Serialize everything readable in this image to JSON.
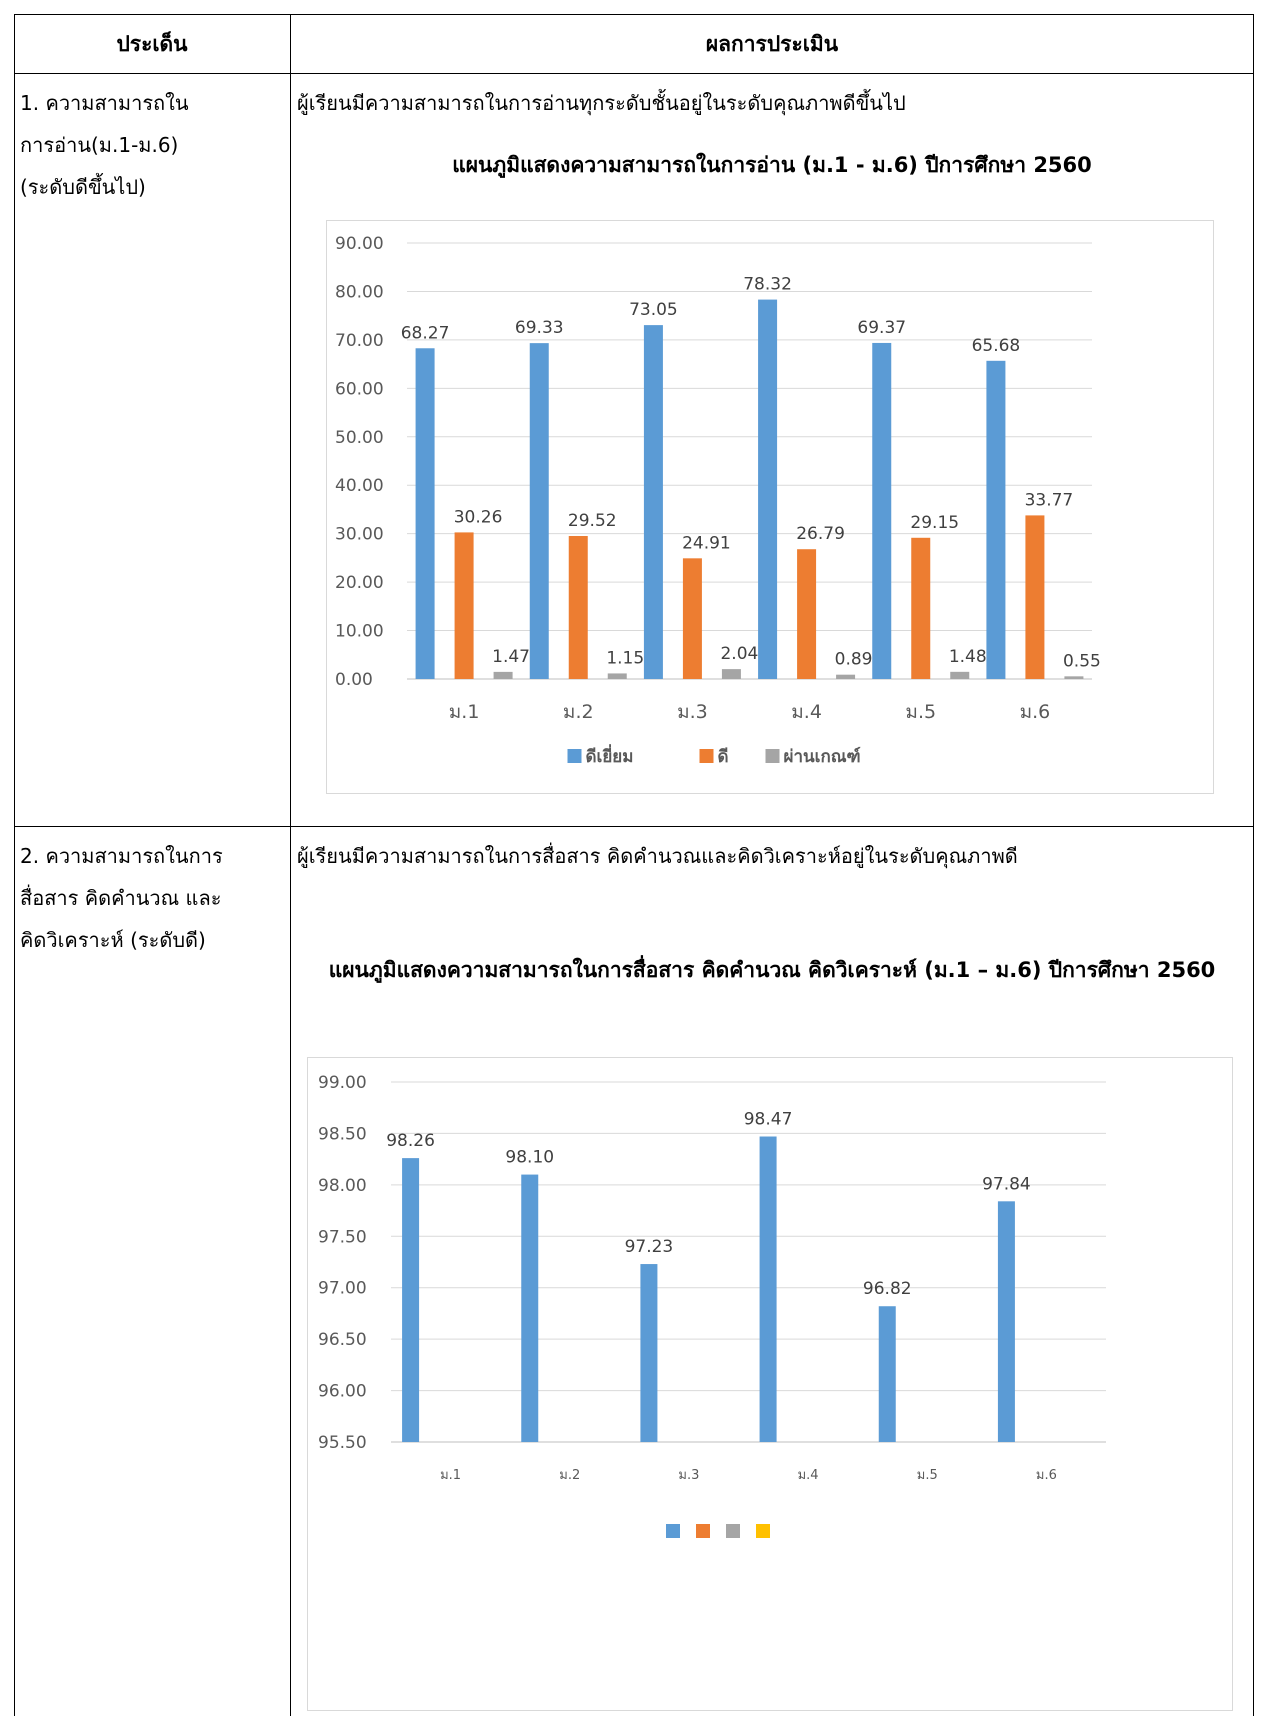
{
  "table": {
    "header": {
      "topic": "ประเด็น",
      "result": "ผลการประเมิน"
    },
    "rows": [
      {
        "topic": "1. ความสามารถใน\nการอ่าน(ม.1-ม.6)\n(ระดับดีขึ้นไป)",
        "result": "ผู้เรียนมีความสามารถในการอ่านทุกระดับชั้นอยู่ในระดับคุณภาพดีขึ้นไป",
        "chart_title": "แผนภูมิแสดงความสามารถในการอ่าน (ม.1 - ม.6) ปีการศึกษา 2560"
      },
      {
        "topic": "2. ความสามารถในการ\nสื่อสาร คิดคำนวณ และ\nคิดวิเคราะห์ (ระดับดี)",
        "result": "ผู้เรียนมีความสามารถในการสื่อสาร คิดคำนวณและคิดวิเคราะห์อยู่ในระดับคุณภาพดี",
        "chart_title": "แผนภูมิแสดงความสามารถในการสื่อสาร คิดคำนวณ คิดวิเคราะห์ (ม.1 – ม.6) ปีการศึกษา 2560"
      }
    ]
  },
  "chart_data": [
    {
      "type": "bar",
      "categories": [
        "ม.1",
        "ม.2",
        "ม.3",
        "ม.4",
        "ม.5",
        "ม.6"
      ],
      "series": [
        {
          "name": "ดีเยี่ยม",
          "color": "#5b9bd5",
          "values": [
            68.27,
            69.33,
            73.05,
            78.32,
            69.37,
            65.68
          ]
        },
        {
          "name": "ดี",
          "color": "#ed7d31",
          "values": [
            30.26,
            29.52,
            24.91,
            26.79,
            29.15,
            33.77
          ]
        },
        {
          "name": "ผ่านเกณฑ์",
          "color": "#a5a5a5",
          "values": [
            1.47,
            1.15,
            2.04,
            0.89,
            1.48,
            0.55
          ]
        }
      ],
      "ylim": [
        0,
        90
      ],
      "ytick_step": 10,
      "ytick_decimals": 2,
      "grid": true,
      "legend": "bottom"
    },
    {
      "type": "bar",
      "categories": [
        "ม.1",
        "ม.2",
        "ม.3",
        "ม.4",
        "ม.5",
        "ม.6"
      ],
      "series": [
        {
          "color": "#5b9bd5",
          "values": [
            98.26,
            98.1,
            97.23,
            98.47,
            96.82,
            97.84
          ]
        }
      ],
      "legend_swatches": [
        "#5b9bd5",
        "#ed7d31",
        "#a5a5a5",
        "#ffc000"
      ],
      "ylim": [
        95.5,
        99.0
      ],
      "ytick_step": 0.5,
      "ytick_decimals": 2,
      "grid": true,
      "legend": "bottom"
    }
  ]
}
